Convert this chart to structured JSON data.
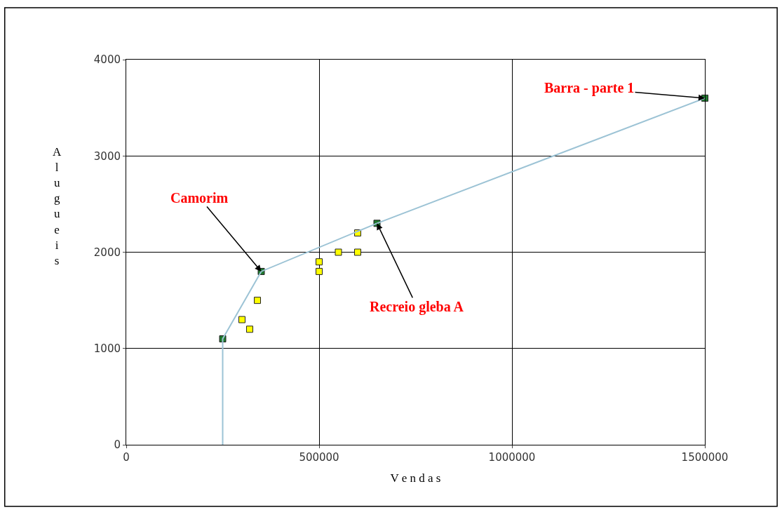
{
  "chart_data": {
    "type": "scatter",
    "xlabel": "V e n d a s",
    "ylabel": "Alugueis",
    "xlim": [
      0,
      1500000
    ],
    "xticks": [
      0,
      500000,
      1000000,
      1500000
    ],
    "ylim": [
      0,
      4000
    ],
    "yticks": [
      0,
      1000,
      2000,
      3000,
      4000
    ],
    "grid": true,
    "marker": "square",
    "series": [
      {
        "type": "line",
        "marker": "none",
        "color": "#9cc3d5",
        "x": [
          250000,
          250000,
          350000,
          650000,
          1500000
        ],
        "values": [
          0,
          1100,
          1800,
          2300,
          3600
        ]
      },
      {
        "color": "#1f7a2e",
        "x": [
          250000,
          350000,
          650000,
          1500000
        ],
        "values": [
          1100,
          1800,
          2300,
          3600
        ]
      },
      {
        "color": "#ffff00",
        "x": [
          300000,
          320000,
          340000,
          500000,
          500000,
          550000,
          600000,
          600000
        ],
        "values": [
          1300,
          1200,
          1500,
          1900,
          1800,
          2000,
          2000,
          2200
        ]
      }
    ],
    "annotations": [
      {
        "text": "Camorim",
        "x": 350000,
        "y": 1800
      },
      {
        "text": "Recreio gleba A",
        "x": 650000,
        "y": 2300
      },
      {
        "text": "Barra - parte 1",
        "x": 1500000,
        "y": 3600
      }
    ]
  }
}
